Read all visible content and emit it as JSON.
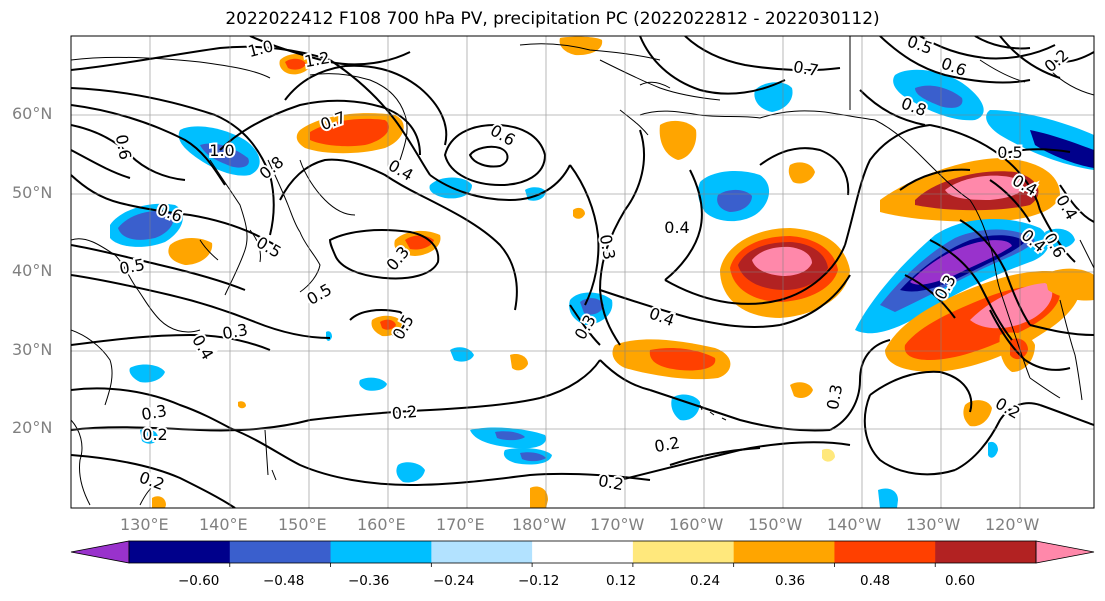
{
  "title": "2022022412 F108 700 hPa PV, precipitation PC (2022022812 - 2022030112)",
  "latitude_labels": [
    "60°N",
    "50°N",
    "40°N",
    "30°N",
    "20°N"
  ],
  "longitude_labels": [
    "130°E",
    "140°E",
    "150°E",
    "160°E",
    "170°E",
    "180°W",
    "170°W",
    "160°W",
    "150°W",
    "140°W",
    "130°W",
    "120°W"
  ],
  "colorbar": {
    "ticks": [
      "−0.60",
      "−0.48",
      "−0.36",
      "−0.24",
      "−0.12",
      "0.12",
      "0.24",
      "0.36",
      "0.48",
      "0.60"
    ],
    "colors": [
      "#9932cc",
      "#00008b",
      "#3a5fcd",
      "#00bfff",
      "#b2e2ff",
      "#ffffff",
      "#ffe87c",
      "#ffa500",
      "#ff4000",
      "#b22222",
      "#ff88aa"
    ]
  },
  "pv_contour_labels": [
    "1.0",
    "1.2",
    "0.7",
    "0.6",
    "1.0",
    "0.8",
    "0.6",
    "0.4",
    "0.6",
    "0.5",
    "0.5",
    "0.3",
    "0.5",
    "0.3",
    "0.4",
    "0.3",
    "0.4",
    "0.5",
    "0.3",
    "0.4",
    "0.3",
    "0.2",
    "0.2",
    "0.2",
    "0.2",
    "0.3",
    "0.2",
    "0.7",
    "0.5",
    "0.6",
    "0.8",
    "0.5",
    "0.4",
    "0.2",
    "0.6",
    "0.4",
    "0.4",
    "0.3",
    "0.2"
  ]
}
